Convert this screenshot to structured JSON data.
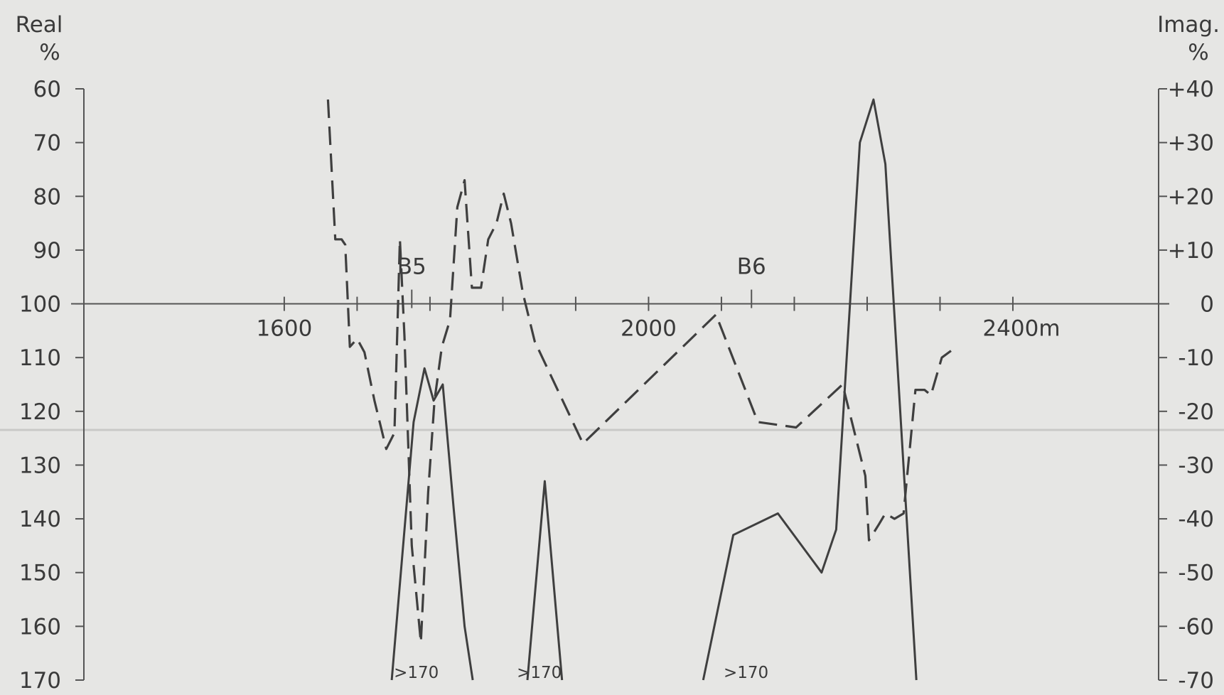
{
  "chart_data": {
    "type": "line",
    "x_axis": {
      "unit": "m",
      "range": [
        1380,
        2560
      ],
      "tick_values": [
        1600,
        1680,
        1760,
        1840,
        1920,
        2000,
        2080,
        2160,
        2240,
        2320,
        2400
      ],
      "labels": [
        {
          "value": 1600,
          "text": "1600"
        },
        {
          "value": 2000,
          "text": "2000"
        },
        {
          "value": 2400,
          "text": "2400m"
        }
      ]
    },
    "y_left": {
      "title_line1": "Real",
      "title_line2": "%",
      "range": [
        60,
        170
      ],
      "ticks": [
        60,
        70,
        80,
        90,
        100,
        110,
        120,
        130,
        140,
        150,
        160,
        170
      ]
    },
    "y_right": {
      "title_line1": "Imag.",
      "title_line2": "%",
      "range": [
        40,
        -70
      ],
      "ticks": [
        {
          "value": 40,
          "text": "+40"
        },
        {
          "value": 30,
          "text": "+30"
        },
        {
          "value": 20,
          "text": "+20"
        },
        {
          "value": 10,
          "text": "+10"
        },
        {
          "value": 0,
          "text": "0"
        },
        {
          "value": -10,
          "text": "-10"
        },
        {
          "value": -20,
          "text": "-20"
        },
        {
          "value": -30,
          "text": "-30"
        },
        {
          "value": -40,
          "text": "-40"
        },
        {
          "value": -50,
          "text": "-50"
        },
        {
          "value": -60,
          "text": "-60"
        },
        {
          "value": -70,
          "text": "-70"
        }
      ]
    },
    "markers": [
      {
        "label": "B5",
        "x": 1740
      },
      {
        "label": "B6",
        "x": 2113
      }
    ],
    "off_scale_annotations": [
      {
        "text": ">170",
        "x": 1745
      },
      {
        "text": ">170",
        "x": 1880
      },
      {
        "text": ">170",
        "x": 2107
      }
    ],
    "series": [
      {
        "style": "dashed",
        "axis": "left",
        "points": [
          [
            1648,
            62
          ],
          [
            1656,
            88
          ],
          [
            1663,
            88
          ],
          [
            1667,
            89
          ],
          [
            1672,
            108
          ],
          [
            1680,
            106.5
          ],
          [
            1688,
            109
          ],
          [
            1699,
            118
          ],
          [
            1712,
            127
          ],
          [
            1721,
            124
          ],
          [
            1727,
            88
          ],
          [
            1732,
            106
          ],
          [
            1740,
            145
          ],
          [
            1750,
            163
          ],
          [
            1758,
            135
          ],
          [
            1765,
            118
          ],
          [
            1773,
            108
          ],
          [
            1782,
            103
          ],
          [
            1790,
            82
          ],
          [
            1798,
            77
          ],
          [
            1806,
            97
          ],
          [
            1816,
            97
          ],
          [
            1824,
            88
          ],
          [
            1833,
            85
          ],
          [
            1841,
            79.5
          ],
          [
            1849,
            85
          ],
          [
            1862,
            98
          ],
          [
            1875,
            107
          ],
          [
            1928,
            126
          ],
          [
            2074,
            102
          ],
          [
            2120,
            122
          ],
          [
            2162,
            123
          ],
          [
            2213,
            115
          ],
          [
            2238,
            132
          ],
          [
            2242,
            144
          ],
          [
            2253,
            141
          ],
          [
            2260,
            139
          ],
          [
            2270,
            140
          ],
          [
            2280,
            139
          ],
          [
            2293,
            116
          ],
          [
            2303,
            116
          ],
          [
            2310,
            117
          ],
          [
            2322,
            110
          ],
          [
            2334,
            108.5
          ]
        ]
      },
      {
        "style": "solid",
        "axis": "right",
        "segments": [
          [
            [
              1718,
              -70
            ],
            [
              1742,
              -22
            ],
            [
              1754,
              -12
            ],
            [
              1764,
              -18
            ],
            [
              1774,
              -15
            ],
            [
              1786,
              -38
            ],
            [
              1798,
              -60
            ],
            [
              1807,
              -70
            ]
          ],
          [
            [
              1867,
              -70
            ],
            [
              1886,
              -33
            ],
            [
              1905,
              -70
            ]
          ],
          [
            [
              2060,
              -70
            ],
            [
              2093,
              -43
            ],
            [
              2142,
              -39
            ],
            [
              2190,
              -50
            ],
            [
              2206,
              -42
            ],
            [
              2232,
              30
            ],
            [
              2247,
              38
            ],
            [
              2260,
              26
            ],
            [
              2294,
              -70
            ]
          ]
        ]
      }
    ]
  }
}
